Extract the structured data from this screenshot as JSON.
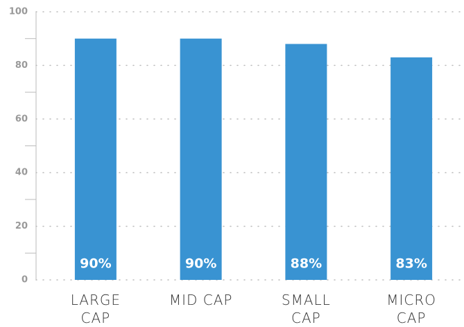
{
  "chart_data": {
    "type": "bar",
    "categories": [
      "LARGE CAP",
      "MID CAP",
      "SMALL CAP",
      "MICRO CAP"
    ],
    "values": [
      90,
      90,
      88,
      83
    ],
    "value_labels": [
      "90%",
      "90%",
      "88%",
      "83%"
    ],
    "color": "#3993d2",
    "ylim": [
      0,
      100
    ],
    "yticks": [
      0,
      20,
      40,
      60,
      80,
      100
    ],
    "yminor_ticks": [
      10,
      30,
      50,
      70,
      90
    ],
    "grid": true
  }
}
